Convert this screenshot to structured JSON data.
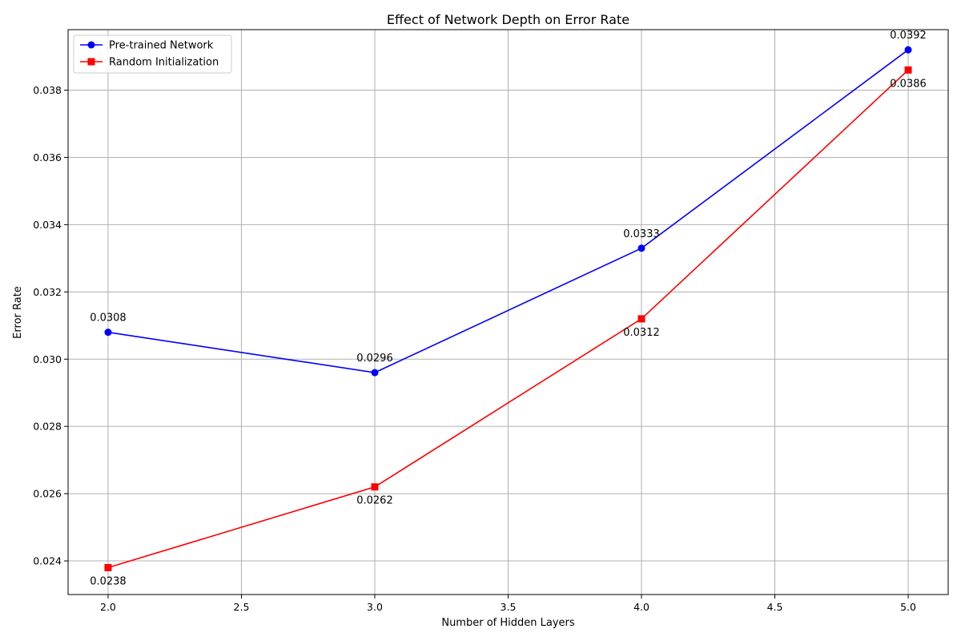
{
  "chart_data": {
    "type": "line",
    "title": "Effect of Network Depth on Error Rate",
    "xlabel": "Number of Hidden Layers",
    "ylabel": "Error Rate",
    "x": [
      2,
      3,
      4,
      5
    ],
    "xlim": [
      1.85,
      5.15
    ],
    "ylim": [
      0.023,
      0.0398
    ],
    "xticks": [
      "2.0",
      "2.5",
      "3.0",
      "3.5",
      "4.0",
      "4.5",
      "5.0"
    ],
    "yticks": [
      "0.024",
      "0.026",
      "0.028",
      "0.030",
      "0.032",
      "0.034",
      "0.036",
      "0.038"
    ],
    "grid": true,
    "legend_position": "top-left",
    "series": [
      {
        "name": "Pre-trained Network",
        "values": [
          0.0308,
          0.0296,
          0.0333,
          0.0392
        ],
        "labels": [
          "0.0308",
          "0.0296",
          "0.0333",
          "0.0392"
        ],
        "color": "#0000ff",
        "marker": "circle",
        "label_position": "above"
      },
      {
        "name": "Random Initialization",
        "values": [
          0.0238,
          0.0262,
          0.0312,
          0.0386
        ],
        "labels": [
          "0.0238",
          "0.0262",
          "0.0312",
          "0.0386"
        ],
        "color": "#ff0000",
        "marker": "square",
        "label_position": "below"
      }
    ]
  }
}
